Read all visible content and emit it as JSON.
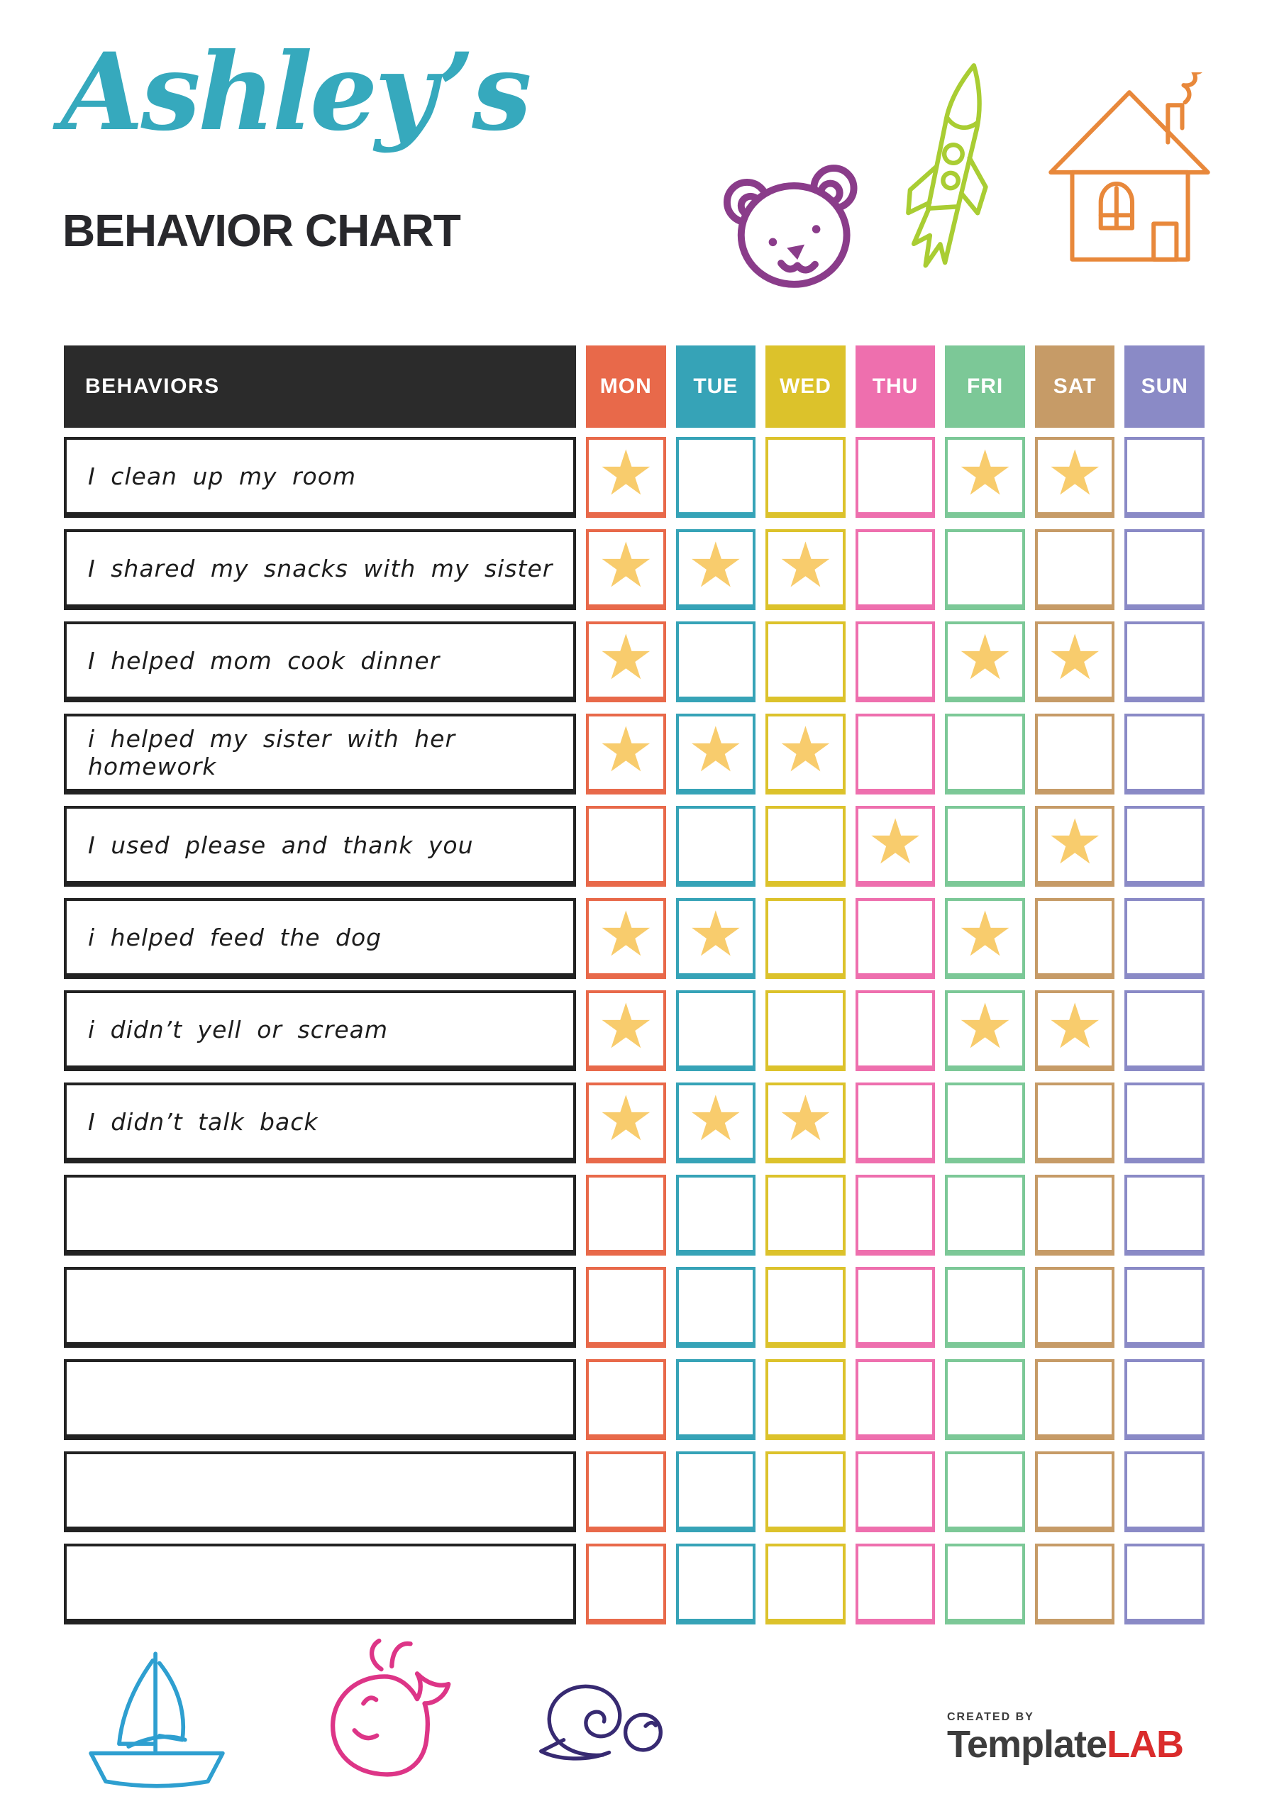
{
  "page": {
    "title_script": "Ashley’s",
    "title_main": "BEHAVIOR CHART"
  },
  "table": {
    "behaviors_header": "BEHAVIORS",
    "star_glyph": "★",
    "days": [
      {
        "label": "MON",
        "color": "#e8694a"
      },
      {
        "label": "TUE",
        "color": "#36a3b7"
      },
      {
        "label": "WED",
        "color": "#dcc22b"
      },
      {
        "label": "THU",
        "color": "#ee6fae"
      },
      {
        "label": "FRI",
        "color": "#7cc897"
      },
      {
        "label": "SAT",
        "color": "#c69b67"
      },
      {
        "label": "SUN",
        "color": "#8a8ac6"
      }
    ],
    "rows": [
      {
        "label": "I clean up my room",
        "stars": [
          "MON",
          "FRI",
          "SAT"
        ]
      },
      {
        "label": "I shared my snacks with my sister",
        "stars": [
          "MON",
          "TUE",
          "WED"
        ]
      },
      {
        "label": "I helped mom cook dinner",
        "stars": [
          "MON",
          "FRI",
          "SAT"
        ]
      },
      {
        "label": "i helped my sister with her homework",
        "stars": [
          "MON",
          "TUE",
          "WED"
        ]
      },
      {
        "label": "I used please and thank you",
        "stars": [
          "THU",
          "SAT"
        ]
      },
      {
        "label": "i helped feed the dog",
        "stars": [
          "MON",
          "TUE",
          "FRI"
        ]
      },
      {
        "label": "i didn’t yell or scream",
        "stars": [
          "MON",
          "FRI",
          "SAT"
        ]
      },
      {
        "label": "I didn’t talk back",
        "stars": [
          "MON",
          "TUE",
          "WED"
        ]
      },
      {
        "label": "",
        "stars": []
      },
      {
        "label": "",
        "stars": []
      },
      {
        "label": "",
        "stars": []
      },
      {
        "label": "",
        "stars": []
      },
      {
        "label": "",
        "stars": []
      }
    ]
  },
  "footer": {
    "created_by": "CREATED BY",
    "brand_left": "Template",
    "brand_right": "LAB"
  },
  "colors": {
    "title_script": "#36a9bd",
    "title_main": "#28282c",
    "header_bg": "#2b2b2b",
    "header_text": "#ffffff",
    "row_border": "#222222",
    "star": "#f8cc6d",
    "bear": "#8a3c8a",
    "rocket": "#a9cd33",
    "house": "#e8883b",
    "sailboat": "#2e9fd0",
    "whale": "#dd3587",
    "snail": "#372a72",
    "brand_gray": "#3d3d3d",
    "brand_red": "#da2c2c"
  }
}
